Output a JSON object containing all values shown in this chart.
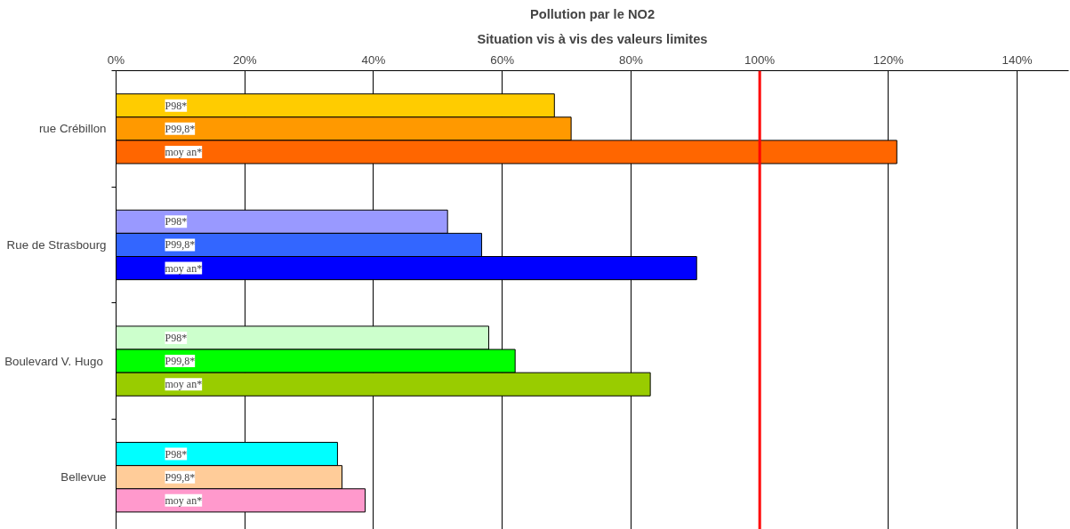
{
  "chart_data": {
    "type": "bar",
    "orientation": "horizontal",
    "title": "Pollution par le NO2",
    "subtitle": "Situation vis à vis des valeurs limites",
    "categories": [
      "rue Crébillon",
      "Rue de Strasbourg",
      "Boulevard  V. Hugo",
      "Bellevue"
    ],
    "series": [
      {
        "name": "P98*",
        "colors": [
          "#ffcc00",
          "#9999ff",
          "#ccffcc",
          "#00ffff"
        ],
        "values": [
          68.1,
          51.5,
          57.9,
          34.4
        ]
      },
      {
        "name": "P99,8*",
        "colors": [
          "#ff9900",
          "#3366ff",
          "#00ff00",
          "#ffcc99"
        ],
        "values": [
          70.7,
          56.8,
          62.0,
          35.1
        ]
      },
      {
        "name": "moy an*",
        "colors": [
          "#ff6600",
          "#0000ff",
          "#99cc00",
          "#ff99cc"
        ],
        "values": [
          121.3,
          90.2,
          83.0,
          38.7
        ]
      }
    ],
    "xlim": [
      0,
      148
    ],
    "xticks": [
      {
        "value": 0,
        "label": "0%"
      },
      {
        "value": 20,
        "label": "20%"
      },
      {
        "value": 40,
        "label": "40%"
      },
      {
        "value": 60,
        "label": "60%"
      },
      {
        "value": 80,
        "label": "80%"
      },
      {
        "value": 100,
        "label": "100%"
      },
      {
        "value": 120,
        "label": "120%"
      },
      {
        "value": 140,
        "label": "140%"
      }
    ],
    "grid": "x",
    "ref_lines": [
      {
        "axis": "x",
        "value": 100,
        "color": "#ff0000"
      }
    ]
  }
}
